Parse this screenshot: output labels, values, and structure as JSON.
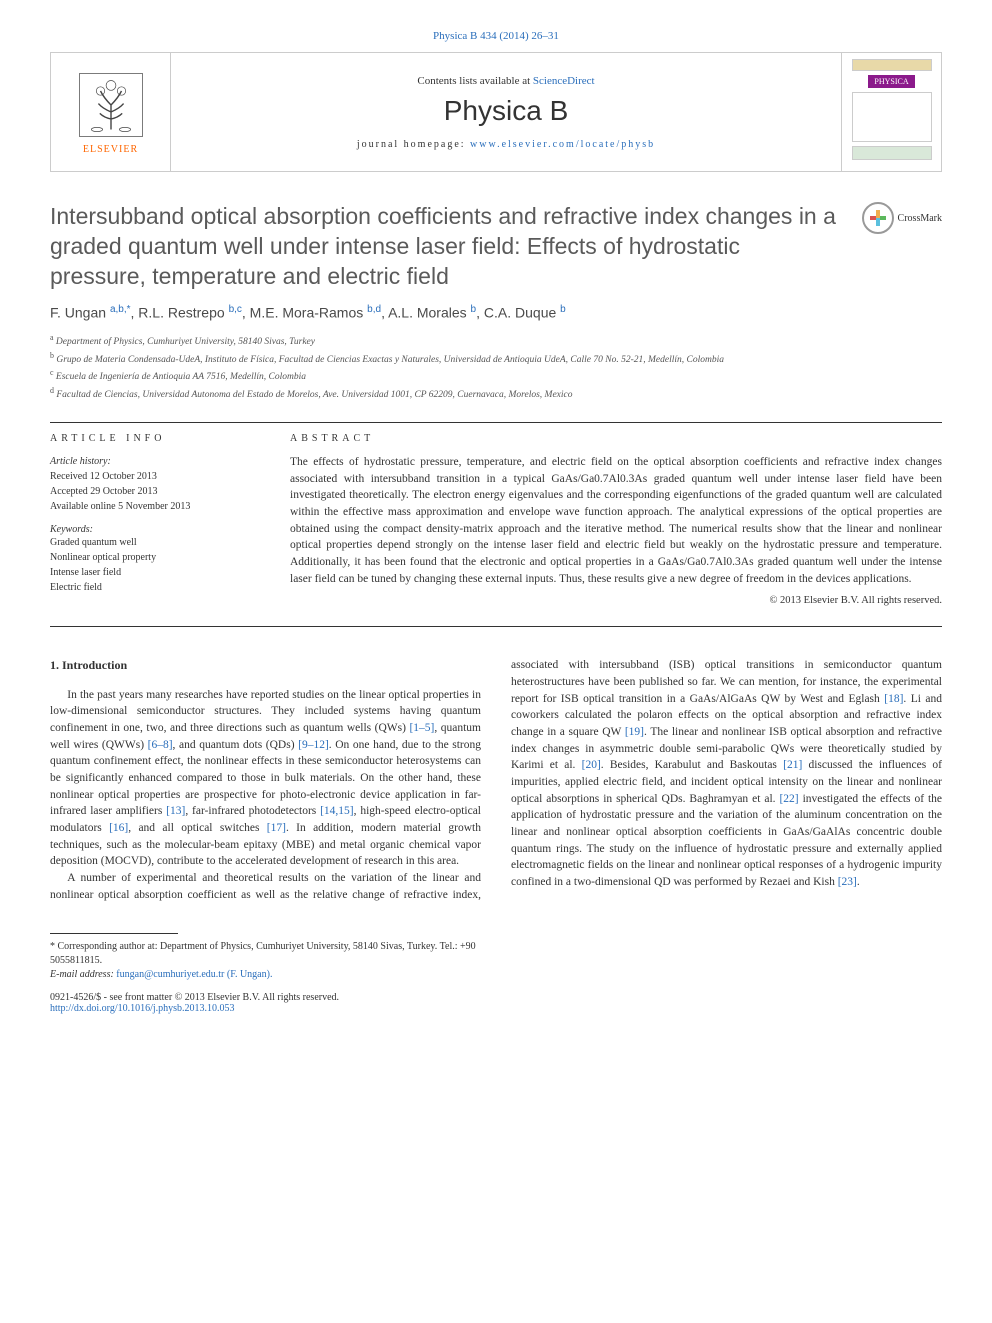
{
  "journal_ref": "Physica B 434 (2014) 26–31",
  "header": {
    "publisher": "ELSEVIER",
    "contents_pre": "Contents lists available at ",
    "contents_link": "ScienceDirect",
    "journal_title": "Physica B",
    "homepage_pre": "journal homepage: ",
    "homepage_link": "www.elsevier.com/locate/physb",
    "cover_label": "PHYSICA"
  },
  "article": {
    "title": "Intersubband optical absorption coefficients and refractive index changes in a graded quantum well under intense laser field: Effects of hydrostatic pressure, temperature and electric field",
    "crossmark": "CrossMark",
    "authors_html": "F. Ungan <sup>a,b,*</sup>, R.L. Restrepo <sup>b,c</sup>, M.E. Mora-Ramos <sup>b,d</sup>, A.L. Morales <sup>b</sup>, C.A. Duque <sup>b</sup>",
    "affiliations": {
      "a": "Department of Physics, Cumhuriyet University, 58140 Sivas, Turkey",
      "b": "Grupo de Materia Condensada-UdeA, Instituto de Física, Facultad de Ciencias Exactas y Naturales, Universidad de Antioquia UdeA, Calle 70 No. 52-21, Medellín, Colombia",
      "c": "Escuela de Ingeniería de Antioquia AA 7516, Medellín, Colombia",
      "d": "Facultad de Ciencias, Universidad Autonoma del Estado de Morelos, Ave. Universidad 1001, CP 62209, Cuernavaca, Morelos, Mexico"
    }
  },
  "info": {
    "header": "ARTICLE INFO",
    "history_label": "Article history:",
    "received": "Received 12 October 2013",
    "accepted": "Accepted 29 October 2013",
    "online": "Available online 5 November 2013",
    "keywords_label": "Keywords:",
    "keywords": [
      "Graded quantum well",
      "Nonlinear optical property",
      "Intense laser field",
      "Electric field"
    ]
  },
  "abstract": {
    "header": "ABSTRACT",
    "text": "The effects of hydrostatic pressure, temperature, and electric field on the optical absorption coefficients and refractive index changes associated with intersubband transition in a typical GaAs/Ga0.7Al0.3As graded quantum well under intense laser field have been investigated theoretically. The electron energy eigenvalues and the corresponding eigenfunctions of the graded quantum well are calculated within the effective mass approximation and envelope wave function approach. The analytical expressions of the optical properties are obtained using the compact density-matrix approach and the iterative method. The numerical results show that the linear and nonlinear optical properties depend strongly on the intense laser field and electric field but weakly on the hydrostatic pressure and temperature. Additionally, it has been found that the electronic and optical properties in a GaAs/Ga0.7Al0.3As graded quantum well under the intense laser field can be tuned by changing these external inputs. Thus, these results give a new degree of freedom in the devices applications.",
    "copyright": "© 2013 Elsevier B.V. All rights reserved."
  },
  "body": {
    "heading": "1. Introduction",
    "p1_pre": "In the past years many researches have reported studies on the linear optical properties in low-dimensional semiconductor structures. They included systems having quantum confinement in one, two, and three directions such as quantum wells (QWs) ",
    "r1": "[1–5]",
    "p1_mid1": ", quantum well wires (QWWs) ",
    "r2": "[6–8]",
    "p1_mid2": ", and quantum dots (QDs) ",
    "r3": "[9–12]",
    "p1_mid3": ". On one hand, due to the strong quantum confinement effect, the nonlinear effects in these semiconductor heterosystems can be significantly enhanced compared to those in bulk materials. On the other hand, these nonlinear optical properties are prospective for photo-electronic device application in far-infrared laser amplifiers ",
    "r4": "[13]",
    "p1_mid4": ", far-infrared photodetectors ",
    "r5": "[14,15]",
    "p1_mid5": ", high-speed electro-optical modulators ",
    "r6": "[16]",
    "p1_mid6": ", and all optical switches ",
    "r7": "[17]",
    "p1_end": ". In addition, modern material growth techniques, such as the molecular-beam epitaxy (MBE) and metal organic chemical vapor deposition (MOCVD), contribute to the accelerated development of research in this area.",
    "p2_pre": "A number of experimental and theoretical results on the variation of the linear and nonlinear optical absorption coefficient as well as the relative change of refractive index, associated with intersubband (ISB) optical transitions in semiconductor quantum heterostructures have been published so far. We can mention, for instance, the experimental report for ISB optical transition in a GaAs/AlGaAs QW by West and Eglash ",
    "r8": "[18]",
    "p2_mid1": ". Li and coworkers calculated the polaron effects on the optical absorption and refractive index change in a square QW ",
    "r9": "[19]",
    "p2_mid2": ". The linear and nonlinear ISB optical absorption and refractive index changes in asymmetric double semi-parabolic QWs were theoretically studied by Karimi et al. ",
    "r10": "[20]",
    "p2_mid3": ". Besides, Karabulut and Baskoutas ",
    "r11": "[21]",
    "p2_mid4": " discussed the influences of impurities, applied electric field, and incident optical intensity on the linear and nonlinear optical absorptions in spherical QDs. Baghramyan et al. ",
    "r12": "[22]",
    "p2_mid5": " investigated the effects of the application of hydrostatic pressure and the variation of the aluminum concentration on the linear and nonlinear optical absorption coefficients in GaAs/GaAlAs concentric double quantum rings. The study on the influence of hydrostatic pressure and externally applied electromagnetic fields on the linear and nonlinear optical responses of a hydrogenic impurity confined in a two-dimensional QD was performed by Rezaei and Kish ",
    "r13": "[23]",
    "p2_end": "."
  },
  "footnotes": {
    "corr": "* Corresponding author at: Department of Physics, Cumhuriyet University, 58140 Sivas, Turkey. Tel.: +90 5055811815.",
    "email_label": "E-mail address: ",
    "email": "fungan@cumhuriyet.edu.tr (F. Ungan)."
  },
  "doi": {
    "line1": "0921-4526/$ - see front matter © 2013 Elsevier B.V. All rights reserved.",
    "link": "http://dx.doi.org/10.1016/j.physb.2013.10.053"
  },
  "colors": {
    "link": "#2a6ebb",
    "publisher": "#ff6600",
    "cover": "#8b1a8b"
  }
}
